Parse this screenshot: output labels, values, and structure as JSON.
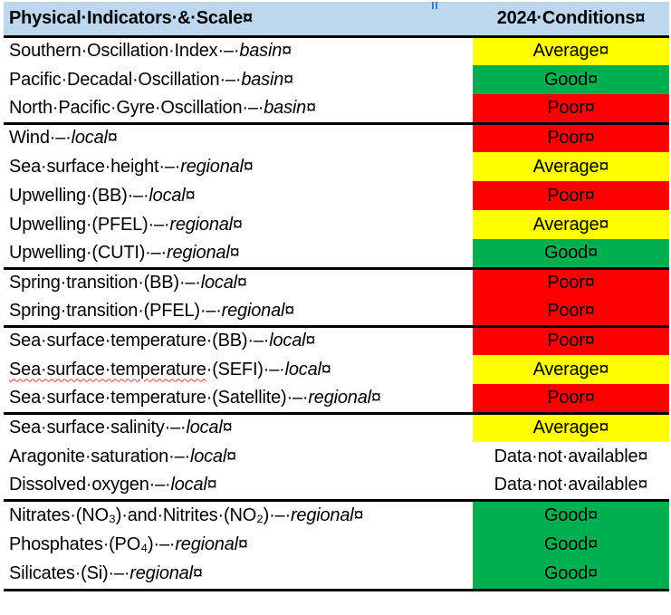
{
  "header": {
    "col1": "Physical·Indicators·&·Scale",
    "col2": "2024·Conditions"
  },
  "marks": {
    "cell_end": "¤"
  },
  "colors": {
    "average": "#FFFF00",
    "good": "#00B050",
    "poor": "#FF0000",
    "header_bg": "#BDD7EE",
    "border": "#000000",
    "squiggle": "#E03B3B",
    "anchor_blue": "#3F7CC0"
  },
  "rows": [
    {
      "segments": [
        {
          "t": "Southern·Oscillation·Index·–·",
          "s": "n"
        },
        {
          "t": "basin",
          "s": "i"
        }
      ],
      "status": "Average",
      "color_key": "average",
      "group_end": false,
      "tall": false
    },
    {
      "segments": [
        {
          "t": "Pacific·Decadal·Oscillation·–·",
          "s": "n"
        },
        {
          "t": "basin",
          "s": "i"
        }
      ],
      "status": "Good",
      "color_key": "good",
      "group_end": false,
      "tall": false
    },
    {
      "segments": [
        {
          "t": "North·Pacific·Gyre·Oscillation·–·",
          "s": "n"
        },
        {
          "t": "basin",
          "s": "i"
        }
      ],
      "status": "Poor",
      "color_key": "poor",
      "group_end": true,
      "tall": false
    },
    {
      "segments": [
        {
          "t": "Wind·–·",
          "s": "n"
        },
        {
          "t": "local",
          "s": "i"
        }
      ],
      "status": "Poor",
      "color_key": "poor",
      "group_end": false,
      "tall": false
    },
    {
      "segments": [
        {
          "t": "Sea·surface·height·–·",
          "s": "n"
        },
        {
          "t": "regional",
          "s": "i"
        }
      ],
      "status": "Average",
      "color_key": "average",
      "group_end": false,
      "tall": false
    },
    {
      "segments": [
        {
          "t": "Upwelling·(BB)·–·",
          "s": "n"
        },
        {
          "t": "local",
          "s": "i"
        }
      ],
      "status": "Poor",
      "color_key": "poor",
      "group_end": false,
      "tall": false
    },
    {
      "segments": [
        {
          "t": "Upwelling·(PFEL)·–·",
          "s": "n"
        },
        {
          "t": "regional",
          "s": "i"
        }
      ],
      "status": "Average",
      "color_key": "average",
      "group_end": false,
      "tall": false
    },
    {
      "segments": [
        {
          "t": "Upwelling·(CUTI)·–·",
          "s": "n"
        },
        {
          "t": "regional",
          "s": "i"
        }
      ],
      "status": "Good",
      "color_key": "good",
      "group_end": true,
      "tall": false
    },
    {
      "segments": [
        {
          "t": "Spring·transition·(BB)·–·",
          "s": "n"
        },
        {
          "t": "local",
          "s": "i"
        }
      ],
      "status": "Poor",
      "color_key": "poor",
      "group_end": false,
      "tall": false
    },
    {
      "segments": [
        {
          "t": "Spring·transition·(PFEL)·–·",
          "s": "n"
        },
        {
          "t": "regional",
          "s": "i"
        }
      ],
      "status": "Poor",
      "color_key": "poor",
      "group_end": true,
      "tall": false
    },
    {
      "segments": [
        {
          "t": "Sea·surface·temperature·(BB)·–·",
          "s": "n"
        },
        {
          "t": "local",
          "s": "i"
        }
      ],
      "status": "Poor",
      "color_key": "poor",
      "group_end": false,
      "tall": false
    },
    {
      "segments": [
        {
          "t": "Sea·surface·temperature",
          "s": "sq"
        },
        {
          "t": "·(SEFI)·–·",
          "s": "n"
        },
        {
          "t": "local",
          "s": "i"
        }
      ],
      "status": "Average",
      "color_key": "average",
      "group_end": false,
      "tall": false
    },
    {
      "segments": [
        {
          "t": "Sea·surface·temperature·(Satellite)·–·",
          "s": "n"
        },
        {
          "t": "regional",
          "s": "i"
        }
      ],
      "status": "Poor",
      "color_key": "poor",
      "group_end": true,
      "tall": false
    },
    {
      "segments": [
        {
          "t": "Sea·surface·salinity·–·",
          "s": "n"
        },
        {
          "t": "local",
          "s": "i"
        }
      ],
      "status": "Average",
      "color_key": "average",
      "group_end": false,
      "tall": false
    },
    {
      "segments": [
        {
          "t": "Aragonite·saturation·–·",
          "s": "n"
        },
        {
          "t": "local",
          "s": "i"
        }
      ],
      "status": "Data·not·available",
      "color_key": "none",
      "group_end": false,
      "tall": false
    },
    {
      "segments": [
        {
          "t": "Dissolved·oxygen·–·",
          "s": "n"
        },
        {
          "t": "local",
          "s": "i"
        }
      ],
      "status": "Data·not·available",
      "color_key": "none",
      "group_end": true,
      "tall": false
    },
    {
      "segments": [
        {
          "t": "Nitrates·(NO₃)·and·Nitrites·(NO₂)·–·",
          "s": "n"
        },
        {
          "t": "regional",
          "s": "i"
        }
      ],
      "status": "Good",
      "color_key": "good",
      "group_end": false,
      "tall": true
    },
    {
      "segments": [
        {
          "t": "Phosphates·(PO₄)·–·",
          "s": "n"
        },
        {
          "t": "regional",
          "s": "i"
        }
      ],
      "status": "Good",
      "color_key": "good",
      "group_end": false,
      "tall": true
    },
    {
      "segments": [
        {
          "t": "Silicates·(Si)·–·",
          "s": "n"
        },
        {
          "t": "regional",
          "s": "i"
        }
      ],
      "status": "Good",
      "color_key": "good",
      "group_end": true,
      "tall": true
    }
  ]
}
